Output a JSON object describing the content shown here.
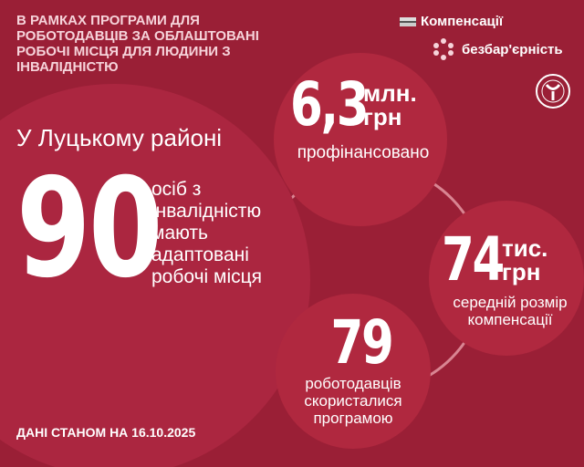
{
  "header": {
    "title": "В РАМКАХ ПРОГРАМИ ДЛЯ РОБОТОДАВЦІВ ЗА ОБЛАШТОВАНІ РОБОЧІ МІСЦЯ ДЛЯ ЛЮДИНИ З ІНВАЛІДНІСТЮ"
  },
  "tags": {
    "compensations": "Компенсації",
    "barrier_free": "безбар'єрність"
  },
  "main": {
    "district": "У Луцькому районі",
    "count": "90",
    "count_text": "осіб з інвалідністю мають адаптовані робочі місця"
  },
  "stats": [
    {
      "value": "6,3",
      "unit": "млн. грн",
      "caption": "профінансовано"
    },
    {
      "value": "74",
      "unit": "тис. грн",
      "caption": "середній розмір компенсації"
    },
    {
      "value": "79",
      "unit": "",
      "caption": "роботодавців скористалися програмою"
    }
  ],
  "footer": {
    "date": "ДАНІ СТАНОМ НА 16.10.2025"
  },
  "colors": {
    "background": "#9a1f36",
    "circle": "#b0283f",
    "ring": "#d98592"
  }
}
